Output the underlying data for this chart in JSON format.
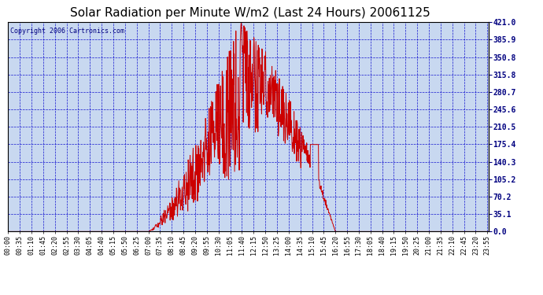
{
  "title": "Solar Radiation per Minute W/m2 (Last 24 Hours) 20061125",
  "copyright": "Copyright 2006 Cartronics.com",
  "background_color": "#ffffff",
  "plot_bg_color": "#c8d8f0",
  "grid_color": "#0000cc",
  "line_color": "#cc0000",
  "border_color": "#000000",
  "title_color": "#000000",
  "ytick_values": [
    0.0,
    35.1,
    70.2,
    105.2,
    140.3,
    175.4,
    210.5,
    245.6,
    280.7,
    315.8,
    350.8,
    385.9,
    421.0
  ],
  "ytick_labels": [
    "0.0",
    "35.1",
    "70.2",
    "105.2",
    "140.3",
    "175.4",
    "210.5",
    "245.6",
    "280.7",
    "315.8",
    "350.8",
    "385.9",
    "421.0"
  ],
  "ymax": 421.0,
  "ymin": 0.0,
  "x_labels": [
    "00:00",
    "00:35",
    "01:10",
    "01:45",
    "02:20",
    "02:55",
    "03:30",
    "04:05",
    "04:40",
    "05:15",
    "05:50",
    "06:25",
    "07:00",
    "07:35",
    "08:10",
    "08:45",
    "09:20",
    "09:55",
    "10:30",
    "11:05",
    "11:40",
    "12:15",
    "12:50",
    "13:25",
    "14:00",
    "14:35",
    "15:10",
    "15:45",
    "16:20",
    "16:55",
    "17:30",
    "18:05",
    "18:40",
    "19:15",
    "19:50",
    "20:25",
    "21:00",
    "21:35",
    "22:10",
    "22:45",
    "23:20",
    "23:55"
  ],
  "n_points": 1440,
  "title_fontsize": 11,
  "copyright_fontsize": 6,
  "tick_fontsize": 6,
  "ytick_fontsize": 7
}
